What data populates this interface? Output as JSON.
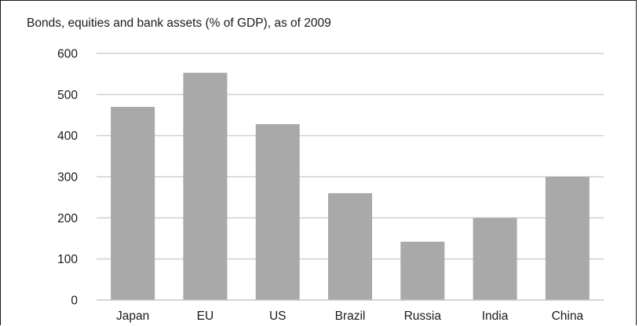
{
  "chart_data": {
    "type": "bar",
    "title": "Bonds, equities and bank assets (% of GDP), as of 2009",
    "xlabel": "",
    "ylabel": "",
    "categories": [
      "Japan",
      "EU",
      "US",
      "Brazil",
      "Russia",
      "India",
      "China"
    ],
    "values": [
      470,
      553,
      428,
      260,
      142,
      200,
      300
    ],
    "ylim": [
      0,
      600
    ],
    "yticks": [
      "0",
      "100",
      "200",
      "300",
      "400",
      "500",
      "600"
    ],
    "grid": true,
    "legend": "none",
    "bar_color": "#a9a9aa",
    "grid_color": "#d0d0d0"
  }
}
